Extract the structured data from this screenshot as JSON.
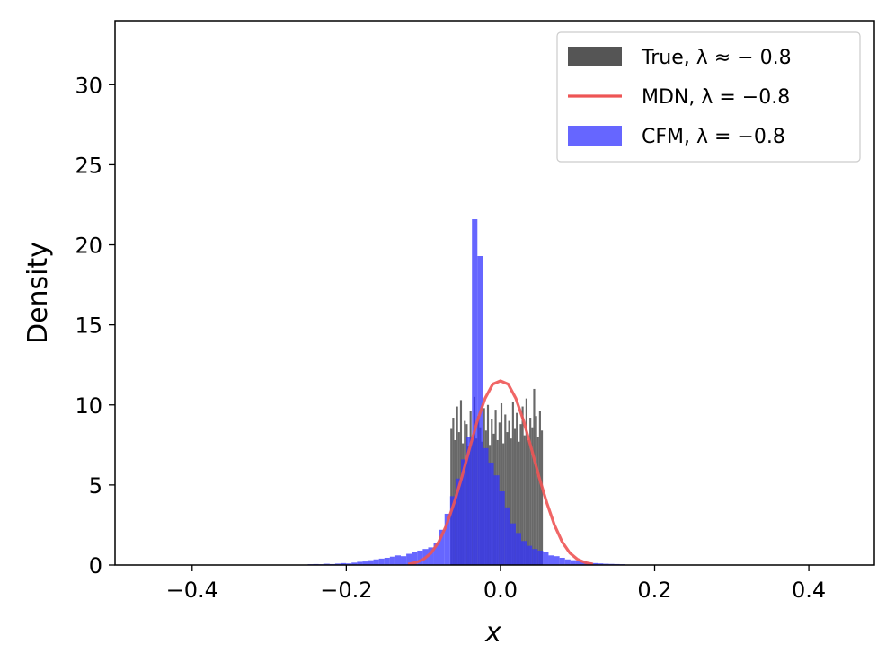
{
  "chart_data": {
    "type": "bar",
    "xlabel": "x",
    "ylabel": "Density",
    "xlim": [
      -0.5,
      0.485
    ],
    "ylim": [
      0,
      34
    ],
    "xticks": [
      -0.4,
      -0.2,
      0.0,
      0.2,
      0.4
    ],
    "xtick_labels": [
      "−0.4",
      "−0.2",
      "0.0",
      "0.2",
      "0.4"
    ],
    "yticks": [
      0,
      5,
      10,
      15,
      20,
      25,
      30
    ],
    "ytick_labels": [
      "0",
      "5",
      "10",
      "15",
      "20",
      "25",
      "30"
    ],
    "grid": false,
    "legend_position": "top-right",
    "legend": [
      {
        "label": "True, λ ≈ − 0.8",
        "swatch": "patch",
        "color": "#555555"
      },
      {
        "label": "MDN, λ = −0.8",
        "swatch": "line",
        "color": "#ee5555"
      },
      {
        "label": "CFM, λ = −0.8",
        "swatch": "patch",
        "color": "#6666ff"
      }
    ],
    "series": [
      {
        "name": "True, λ ≈ − 0.8",
        "kind": "histogram",
        "color": "#4d4d4d",
        "opacity": 0.85,
        "bin_width": 0.0025,
        "x_start": -0.065,
        "heights": [
          8.5,
          9.2,
          7.8,
          9.9,
          8.3,
          10.3,
          7.6,
          9.0,
          8.8,
          7.4,
          9.6,
          8.0,
          10.5,
          7.9,
          9.3,
          8.6,
          7.7,
          9.8,
          8.4,
          10.0,
          7.5,
          9.1,
          8.2,
          9.7,
          7.8,
          8.9,
          10.1,
          7.6,
          9.4,
          8.3,
          9.0,
          7.9,
          10.2,
          8.5,
          9.5,
          7.7,
          8.8,
          9.9,
          8.1,
          10.4,
          7.8,
          9.2,
          8.6,
          11.0,
          9.3,
          8.0,
          9.6,
          8.4
        ]
      },
      {
        "name": "CFM, λ = −0.8",
        "kind": "histogram",
        "color": "#3333ff",
        "opacity": 0.75,
        "bin_width": 0.0071,
        "x_start": -0.25,
        "heights": [
          0.05,
          0.06,
          0.05,
          0.08,
          0.06,
          0.09,
          0.12,
          0.1,
          0.15,
          0.2,
          0.22,
          0.3,
          0.35,
          0.4,
          0.45,
          0.52,
          0.6,
          0.55,
          0.7,
          0.8,
          0.9,
          1.0,
          1.1,
          1.4,
          2.2,
          3.2,
          4.3,
          5.4,
          6.6,
          8.0,
          21.6,
          19.3,
          7.3,
          6.4,
          5.6,
          4.6,
          3.6,
          2.6,
          2.0,
          1.5,
          1.2,
          1.0,
          0.9,
          0.8,
          0.6,
          0.55,
          0.45,
          0.35,
          0.3,
          0.25,
          0.2,
          0.15,
          0.12,
          0.1,
          0.08,
          0.07,
          0.06,
          0.05
        ]
      },
      {
        "name": "MDN, λ = −0.8",
        "kind": "line",
        "color": "#ee5555",
        "x": [
          -0.12,
          -0.11,
          -0.1,
          -0.09,
          -0.08,
          -0.07,
          -0.06,
          -0.05,
          -0.04,
          -0.03,
          -0.02,
          -0.01,
          0.0,
          0.01,
          0.02,
          0.03,
          0.04,
          0.05,
          0.06,
          0.07,
          0.08,
          0.09,
          0.1,
          0.11,
          0.12
        ],
        "y": [
          0.05,
          0.15,
          0.35,
          0.75,
          1.45,
          2.5,
          3.9,
          5.5,
          7.3,
          9.0,
          10.4,
          11.3,
          11.5,
          11.3,
          10.4,
          9.0,
          7.3,
          5.5,
          3.9,
          2.5,
          1.45,
          0.75,
          0.35,
          0.15,
          0.05
        ]
      }
    ]
  }
}
